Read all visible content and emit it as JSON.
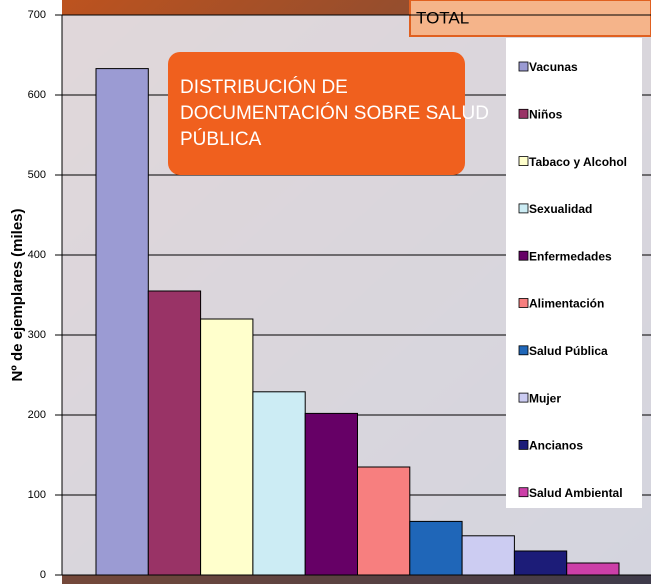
{
  "chart_data": {
    "type": "bar",
    "title": "DISTRIBUCIÓN DE DOCUMENTACIÓN SOBRE SALUD PÚBLICA",
    "subtitle": "TOTAL",
    "y_label": "Nº de ejemplares (miles)",
    "categories": [
      "Vacunas",
      "Niños",
      "Tabaco y Alcohol",
      "Sexualidad",
      "Enfermedades",
      "Alimentación",
      "Salud Pública",
      "Mujer",
      "Ancianos",
      "Salud Ambiental"
    ],
    "values": [
      633,
      355,
      320,
      229,
      202,
      135,
      67,
      49,
      30,
      15
    ],
    "colors": [
      "#9b9bd3",
      "#993366",
      "#ffffcc",
      "#ccecf4",
      "#660066",
      "#f77f7f",
      "#1f66b8",
      "#ccccf2",
      "#1c1c78",
      "#cc3fa8"
    ],
    "ylim": [
      0,
      700
    ],
    "yticks": [
      0,
      100,
      200,
      300,
      400,
      500,
      600,
      700
    ],
    "grid": true
  }
}
